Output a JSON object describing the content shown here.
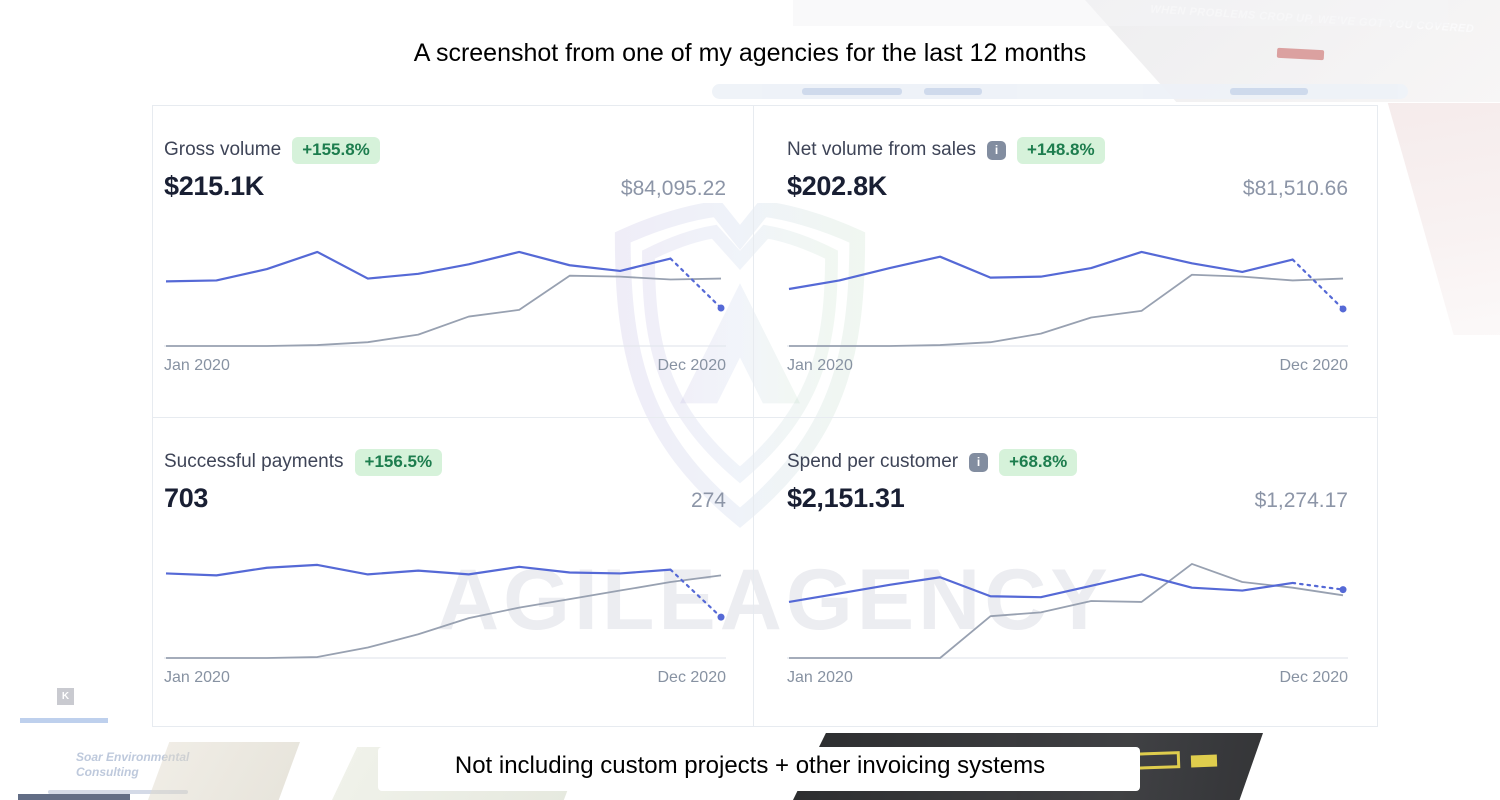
{
  "captions": {
    "top": "A screenshot from one of my agencies for the last 12 months",
    "bottom": "Not including custom projects + other invoicing systems"
  },
  "watermark": {
    "brand_text": "AGILEAGENCY"
  },
  "background_collage": {
    "tagline": "WHEN PROBLEMS CROP UP, WE'VE GOT YOU COVERED",
    "consulting_name": "Soar Environmental Consulting",
    "logo_letter": "K"
  },
  "glyphs": {
    "info": "i"
  },
  "colors": {
    "current_line": "#5569d6",
    "previous_line": "#98a1b1",
    "baseline": "#e3e7ed",
    "badge_bg": "#d6f2da",
    "badge_text": "#1d7d4e",
    "value_text": "#191f33",
    "muted_text": "#8792a2"
  },
  "date_range": {
    "start": "Jan 2020",
    "end": "Dec 2020"
  },
  "panels": [
    {
      "title": "Gross volume",
      "badge": "+155.8%",
      "value": "$215.1K",
      "previous_value": "$84,095.22",
      "has_info_icon": false
    },
    {
      "title": "Net volume from sales",
      "badge": "+148.8%",
      "value": "$202.8K",
      "previous_value": "$81,510.66",
      "has_info_icon": true
    },
    {
      "title": "Successful payments",
      "badge": "+156.5%",
      "value": "703",
      "previous_value": "274",
      "has_info_icon": false
    },
    {
      "title": "Spend per customer",
      "badge": "+68.8%",
      "value": "$2,151.31",
      "previous_value": "$1,274.17",
      "has_info_icon": true
    }
  ],
  "chart_data": [
    {
      "type": "line",
      "title": "Gross volume",
      "months": 12,
      "x_labels_visible": [
        "Jan 2020",
        "Dec 2020"
      ],
      "y_axis": "unlabeled relative scale (0 = baseline, 1 = chart top)",
      "displayed_total": "$215.1K",
      "displayed_previous_total": "$84,095.22",
      "note": "final segment of current period is dashed forecast ending in a dot",
      "series": [
        {
          "name": "current period",
          "color": "#5569d6",
          "values_relative": [
            0.68,
            0.69,
            0.81,
            0.99,
            0.71,
            0.76,
            0.86,
            0.99,
            0.85,
            0.79,
            0.92,
            0.4
          ]
        },
        {
          "name": "previous period",
          "color": "#98a1b1",
          "values_relative": [
            0.0,
            0.0,
            0.0,
            0.01,
            0.04,
            0.12,
            0.31,
            0.38,
            0.74,
            0.73,
            0.7,
            0.71
          ]
        }
      ]
    },
    {
      "type": "line",
      "title": "Net volume from sales",
      "months": 12,
      "x_labels_visible": [
        "Jan 2020",
        "Dec 2020"
      ],
      "y_axis": "unlabeled relative scale (0 = baseline, 1 = chart top)",
      "displayed_total": "$202.8K",
      "displayed_previous_total": "$81,510.66",
      "note": "final segment of current period is dashed forecast ending in a dot",
      "series": [
        {
          "name": "current period",
          "color": "#5569d6",
          "values_relative": [
            0.6,
            0.69,
            0.82,
            0.94,
            0.72,
            0.73,
            0.82,
            0.99,
            0.87,
            0.78,
            0.91,
            0.39
          ]
        },
        {
          "name": "previous period",
          "color": "#98a1b1",
          "values_relative": [
            0.0,
            0.0,
            0.0,
            0.01,
            0.04,
            0.13,
            0.3,
            0.37,
            0.75,
            0.73,
            0.69,
            0.71
          ]
        }
      ]
    },
    {
      "type": "line",
      "title": "Successful payments",
      "months": 12,
      "x_labels_visible": [
        "Jan 2020",
        "Dec 2020"
      ],
      "y_axis": "unlabeled relative scale (0 = baseline, 1 = chart top)",
      "displayed_total": "703",
      "displayed_previous_total": "274",
      "note": "final segment of current period is dashed forecast ending in a dot",
      "series": [
        {
          "name": "current period",
          "color": "#5569d6",
          "values_relative": [
            0.89,
            0.87,
            0.95,
            0.98,
            0.88,
            0.92,
            0.88,
            0.96,
            0.9,
            0.89,
            0.93,
            0.43
          ]
        },
        {
          "name": "previous period",
          "color": "#98a1b1",
          "values_relative": [
            0.0,
            0.0,
            0.0,
            0.01,
            0.11,
            0.25,
            0.42,
            0.53,
            0.62,
            0.71,
            0.8,
            0.87
          ]
        }
      ]
    },
    {
      "type": "line",
      "title": "Spend per customer",
      "months": 12,
      "x_labels_visible": [
        "Jan 2020",
        "Dec 2020"
      ],
      "y_axis": "unlabeled relative scale (0 = baseline, 1 = chart top)",
      "displayed_total": "$2,151.31",
      "displayed_previous_total": "$1,274.17",
      "note": "final segment of current period is dashed forecast ending in a dot",
      "series": [
        {
          "name": "current period",
          "color": "#5569d6",
          "values_relative": [
            0.59,
            0.68,
            0.77,
            0.85,
            0.65,
            0.64,
            0.76,
            0.88,
            0.74,
            0.71,
            0.79,
            0.72
          ]
        },
        {
          "name": "previous period",
          "color": "#98a1b1",
          "values_relative": [
            0.0,
            0.0,
            0.0,
            0.0,
            0.44,
            0.48,
            0.6,
            0.59,
            0.99,
            0.8,
            0.74,
            0.66
          ]
        }
      ]
    }
  ]
}
